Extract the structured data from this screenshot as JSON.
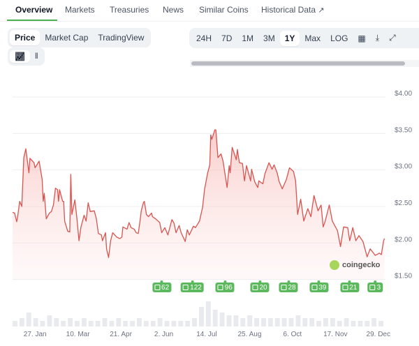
{
  "tabs": [
    "Overview",
    "Markets",
    "Treasuries",
    "News",
    "Similar Coins",
    "Historical Data"
  ],
  "chart_views": [
    "Price",
    "Market Cap",
    "TradingView"
  ],
  "ranges": [
    "24H",
    "7D",
    "1M",
    "3M",
    "1Y",
    "Max",
    "LOG"
  ],
  "active_range": "1Y",
  "colors": {
    "line": "#d9534f",
    "accent": "#4caf50",
    "badge": "#5cb85c"
  },
  "watermark": "coingecko",
  "chart_data": {
    "type": "area",
    "title": "",
    "ylabel": "Price (USD)",
    "ylim": [
      1.5,
      4.0
    ],
    "yticks": [
      "$1.50",
      "$2.00",
      "$2.50",
      "$3.00",
      "$3.50",
      "$4.00"
    ],
    "ytick_values": [
      1.5,
      2.0,
      2.5,
      3.0,
      3.5,
      4.0
    ],
    "xlim_days": [
      0,
      365
    ],
    "xticks": [
      {
        "label": "27. Jan",
        "day": 22
      },
      {
        "label": "10. Mar",
        "day": 64
      },
      {
        "label": "21. Apr",
        "day": 106
      },
      {
        "label": "2. Jun",
        "day": 148
      },
      {
        "label": "14. Jul",
        "day": 190
      },
      {
        "label": "25. Aug",
        "day": 232
      },
      {
        "label": "6. Oct",
        "day": 274
      },
      {
        "label": "17. Nov",
        "day": 316
      },
      {
        "label": "29. Dec",
        "day": 358
      }
    ],
    "series": [
      {
        "name": "Price",
        "points": [
          [
            0,
            2.42
          ],
          [
            2,
            2.41
          ],
          [
            4,
            2.29
          ],
          [
            5,
            2.36
          ],
          [
            7,
            2.57
          ],
          [
            9,
            2.5
          ],
          [
            11,
            3.17
          ],
          [
            13,
            3.29
          ],
          [
            16,
            2.96
          ],
          [
            17,
            3.16
          ],
          [
            21,
            3.1
          ],
          [
            22,
            3.03
          ],
          [
            26,
            3.12
          ],
          [
            29,
            2.87
          ],
          [
            30,
            2.57
          ],
          [
            31,
            2.68
          ],
          [
            33,
            2.33
          ],
          [
            36,
            2.41
          ],
          [
            38,
            2.43
          ],
          [
            40,
            2.52
          ],
          [
            42,
            2.75
          ],
          [
            44,
            2.73
          ],
          [
            45,
            2.57
          ],
          [
            46,
            2.73
          ],
          [
            49,
            2.57
          ],
          [
            50,
            2.57
          ],
          [
            51,
            2.3
          ],
          [
            54,
            2.16
          ],
          [
            56,
            2.15
          ],
          [
            57,
            2.94
          ],
          [
            58,
            2.39
          ],
          [
            61,
            2.59
          ],
          [
            63,
            2.33
          ],
          [
            65,
            2.03
          ],
          [
            67,
            2.22
          ],
          [
            70,
            2.38
          ],
          [
            72,
            2.3
          ],
          [
            74,
            2.55
          ],
          [
            76,
            2.43
          ],
          [
            80,
            2.44
          ],
          [
            82,
            2.33
          ],
          [
            84,
            2.13
          ],
          [
            87,
            2.11
          ],
          [
            88,
            2.03
          ],
          [
            91,
            2.14
          ],
          [
            92,
            1.92
          ],
          [
            94,
            1.8
          ],
          [
            96,
            2.03
          ],
          [
            98,
            2.14
          ],
          [
            102,
            2.08
          ],
          [
            105,
            2.06
          ],
          [
            107,
            2.08
          ],
          [
            108,
            2.22
          ],
          [
            112,
            2.19
          ],
          [
            114,
            2.28
          ],
          [
            116,
            2.21
          ],
          [
            119,
            2.19
          ],
          [
            121,
            2.14
          ],
          [
            123,
            2.13
          ],
          [
            125,
            2.33
          ],
          [
            126,
            2.44
          ],
          [
            128,
            2.55
          ],
          [
            129,
            2.57
          ],
          [
            131,
            2.39
          ],
          [
            133,
            2.36
          ],
          [
            136,
            2.41
          ],
          [
            137,
            2.36
          ],
          [
            140,
            2.33
          ],
          [
            144,
            2.28
          ],
          [
            146,
            2.14
          ],
          [
            149,
            2.21
          ],
          [
            152,
            2.11
          ],
          [
            156,
            2.32
          ],
          [
            158,
            2.27
          ],
          [
            160,
            2.14
          ],
          [
            163,
            2.24
          ],
          [
            165,
            2.14
          ],
          [
            169,
            2.02
          ],
          [
            171,
            2.18
          ],
          [
            173,
            2.11
          ],
          [
            177,
            2.23
          ],
          [
            179,
            2.21
          ],
          [
            183,
            2.3
          ],
          [
            186,
            2.49
          ],
          [
            188,
            2.74
          ],
          [
            191,
            2.96
          ],
          [
            193,
            3.07
          ],
          [
            194,
            3.48
          ],
          [
            195,
            3.42
          ],
          [
            198,
            3.55
          ],
          [
            199,
            3.55
          ],
          [
            201,
            3.17
          ],
          [
            204,
            3.22
          ],
          [
            206,
            3.12
          ],
          [
            210,
            2.76
          ],
          [
            212,
            3.06
          ],
          [
            213,
            2.96
          ],
          [
            215,
            3.31
          ],
          [
            219,
            3.14
          ],
          [
            220,
            3.28
          ],
          [
            222,
            3.1
          ],
          [
            225,
            3.09
          ],
          [
            227,
            2.85
          ],
          [
            229,
            3.06
          ],
          [
            233,
            2.85
          ],
          [
            234,
            3.01
          ],
          [
            237,
            2.84
          ],
          [
            240,
            2.76
          ],
          [
            241,
            2.85
          ],
          [
            245,
            2.81
          ],
          [
            247,
            2.95
          ],
          [
            251,
            3.1
          ],
          [
            254,
            3.01
          ],
          [
            256,
            3.07
          ],
          [
            259,
            2.96
          ],
          [
            261,
            2.84
          ],
          [
            264,
            2.74
          ],
          [
            268,
            2.87
          ],
          [
            271,
            3.03
          ],
          [
            275,
            2.98
          ],
          [
            277,
            2.85
          ],
          [
            279,
            2.39
          ],
          [
            282,
            2.6
          ],
          [
            285,
            2.3
          ],
          [
            289,
            2.47
          ],
          [
            292,
            2.36
          ],
          [
            295,
            2.65
          ],
          [
            299,
            2.44
          ],
          [
            302,
            2.52
          ],
          [
            304,
            2.22
          ],
          [
            306,
            2.3
          ],
          [
            310,
            2.52
          ],
          [
            313,
            2.3
          ],
          [
            318,
            2.17
          ],
          [
            321,
            1.95
          ],
          [
            324,
            2.22
          ],
          [
            328,
            2.21
          ],
          [
            330,
            2.03
          ],
          [
            333,
            2.21
          ],
          [
            336,
            2.03
          ],
          [
            339,
            2.1
          ],
          [
            343,
            2.02
          ],
          [
            347,
            1.81
          ],
          [
            350,
            1.92
          ],
          [
            355,
            1.83
          ],
          [
            359,
            1.86
          ],
          [
            361,
            1.84
          ],
          [
            363,
            2.02
          ],
          [
            364,
            2.06
          ]
        ]
      }
    ],
    "volume_relative": [
      0.2,
      0.3,
      0.5,
      0.3,
      0.2,
      0.4,
      0.3,
      0.2,
      0.3,
      0.2,
      0.3,
      0.2,
      0.2,
      0.3,
      0.2,
      0.3,
      0.2,
      0.2,
      0.3,
      0.2,
      0.2,
      0.3,
      0.2,
      0.2,
      0.2,
      0.2,
      0.3,
      0.7,
      0.9,
      0.6,
      0.5,
      0.4,
      0.4,
      0.3,
      0.4,
      0.3,
      0.3,
      0.3,
      0.3,
      0.3,
      0.3,
      0.4,
      0.3,
      0.3,
      0.2,
      0.3,
      0.3,
      0.2,
      0.3,
      0.2,
      0.2,
      0.2,
      0.3,
      0.2
    ],
    "annotations": [
      {
        "label": "62",
        "day": 146
      },
      {
        "label": "122",
        "day": 176
      },
      {
        "label": "96",
        "day": 208
      },
      {
        "label": "20",
        "day": 242
      },
      {
        "label": "28",
        "day": 270
      },
      {
        "label": "39",
        "day": 300
      },
      {
        "label": "21",
        "day": 330
      },
      {
        "label": "3",
        "day": 355
      }
    ]
  }
}
